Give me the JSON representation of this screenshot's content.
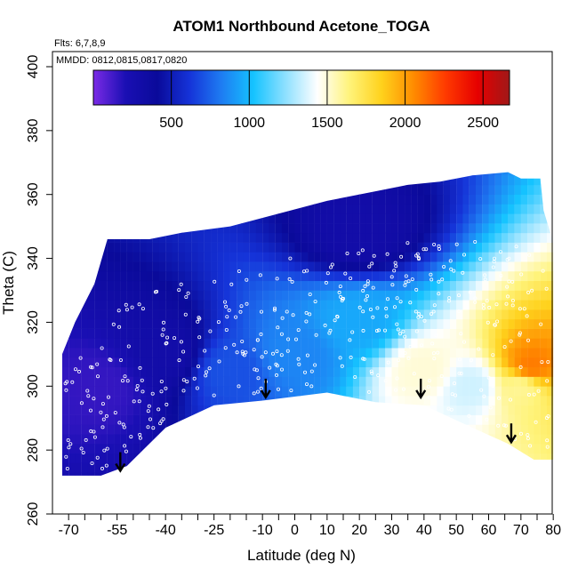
{
  "chart_data": {
    "type": "heatmap",
    "title": "ATOM1 Northbound Acetone_TOGA",
    "flights_note": "Flts: 6,7,8,9",
    "dates_note": "MMDD: 0812,0815,0817,0820",
    "xlabel": "Latitude (deg N)",
    "ylabel": "Theta (C)",
    "xlim": [
      -70,
      80
    ],
    "ylim": [
      260,
      400
    ],
    "x_ticks": [
      -70,
      -55,
      -40,
      -25,
      -10,
      0,
      10,
      20,
      30,
      40,
      50,
      60,
      70,
      80
    ],
    "x_minor_step": 5,
    "y_ticks": [
      260,
      280,
      300,
      320,
      340,
      360,
      380,
      400
    ],
    "colorbar": {
      "range": [
        0,
        2670
      ],
      "ticks": [
        500,
        1000,
        1500,
        2000,
        2500
      ],
      "colors": [
        "#7b2be6",
        "#1a0fb4",
        "#0a0a9a",
        "#1533d8",
        "#1e7cf2",
        "#15c3ff",
        "#8ee0ff",
        "#ffffff",
        "#fff37a",
        "#ffd21c",
        "#ff8c00",
        "#ff3a00",
        "#e60000",
        "#a01818"
      ]
    },
    "domain_bottom_theta": [
      [
        -72,
        272
      ],
      [
        -60,
        272
      ],
      [
        -52,
        275
      ],
      [
        -40,
        287
      ],
      [
        -25,
        294
      ],
      [
        -10,
        295.5
      ],
      [
        10,
        298
      ],
      [
        25,
        295
      ],
      [
        40,
        294
      ],
      [
        55,
        287
      ],
      [
        66,
        282
      ],
      [
        74,
        277
      ],
      [
        80,
        277
      ]
    ],
    "domain_top_theta": [
      [
        -72,
        310
      ],
      [
        -68,
        320
      ],
      [
        -62,
        332
      ],
      [
        -58,
        346
      ],
      [
        -45,
        346
      ],
      [
        -35,
        348
      ],
      [
        -20,
        350
      ],
      [
        -5,
        354
      ],
      [
        10,
        358
      ],
      [
        25,
        361
      ],
      [
        35,
        363
      ],
      [
        45,
        364
      ],
      [
        55,
        366
      ],
      [
        66,
        367
      ],
      [
        70,
        365
      ],
      [
        76,
        365
      ],
      [
        77,
        355
      ],
      [
        80,
        345
      ]
    ],
    "arrows": [
      {
        "lat": -54,
        "theta": 276
      },
      {
        "lat": -9,
        "theta": 299
      },
      {
        "lat": 39,
        "theta": 299
      },
      {
        "lat": 67,
        "theta": 285
      }
    ],
    "field_features": [
      {
        "lat": -60,
        "theta": 300,
        "value": 150
      },
      {
        "lat": -40,
        "theta": 310,
        "value": 300
      },
      {
        "lat": -20,
        "theta": 305,
        "value": 700
      },
      {
        "lat": 0,
        "theta": 310,
        "value": 850
      },
      {
        "lat": 20,
        "theta": 320,
        "value": 950
      },
      {
        "lat": 40,
        "theta": 305,
        "value": 1500
      },
      {
        "lat": 55,
        "theta": 300,
        "value": 1350
      },
      {
        "lat": 70,
        "theta": 300,
        "value": 1600
      },
      {
        "lat": 73,
        "theta": 306,
        "value": 2100
      },
      {
        "lat": 20,
        "theta": 348,
        "value": 300
      }
    ]
  }
}
